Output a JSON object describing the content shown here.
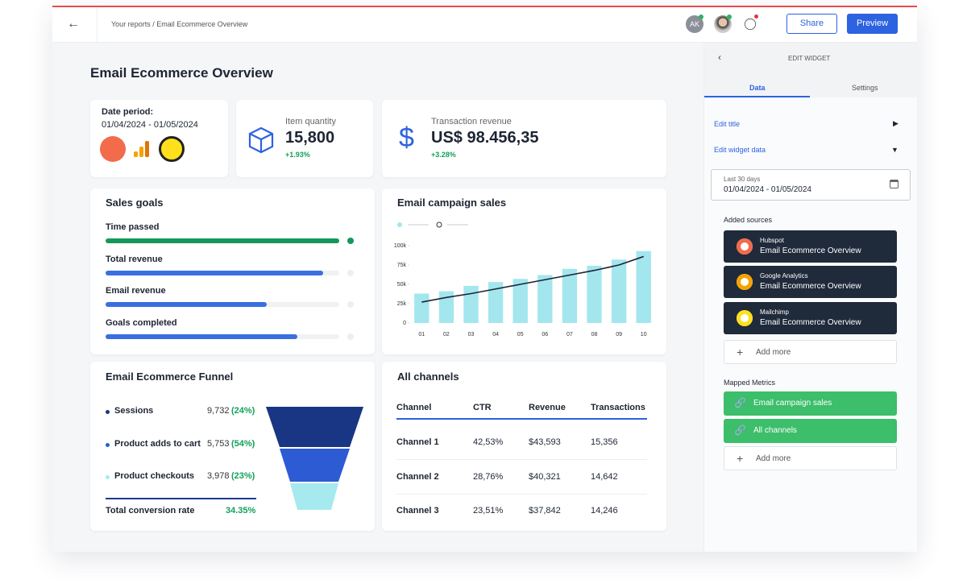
{
  "topbar": {
    "breadcrumb": "Your reports / Email Ecommerce Overview",
    "avatar": "AK",
    "share": "Share",
    "preview": "Preview"
  },
  "page_title": "Email Ecommerce Overview",
  "date_card": {
    "label": "Date period:",
    "value": "01/04/2024 - 01/05/2024"
  },
  "kpis": [
    {
      "label": "Item quantity",
      "value": "15,800",
      "change": "+1.93%"
    },
    {
      "label": "Transaction revenue",
      "value": "US$ 98.456,35",
      "change": "+3.28%"
    }
  ],
  "sales_goals": {
    "title": "Sales goals",
    "goals": [
      {
        "name": "Time passed",
        "progress": 100,
        "color": "#14985a"
      },
      {
        "name": "Total revenue",
        "progress": 93,
        "color": "#3a6fe0"
      },
      {
        "name": "Email revenue",
        "progress": 69,
        "color": "#3a6fe0"
      },
      {
        "name": "Goals completed",
        "progress": 82,
        "color": "#3a6fe0"
      }
    ]
  },
  "chart_data": {
    "type": "bar",
    "title": "Email campaign sales",
    "categories": [
      "01",
      "02",
      "03",
      "04",
      "05",
      "06",
      "07",
      "08",
      "09",
      "10"
    ],
    "series": [
      {
        "color": "#a3e6ee",
        "values": [
          38000,
          41000,
          48000,
          53000,
          57000,
          62000,
          70000,
          74000,
          82000,
          93000
        ]
      },
      {
        "type": "line",
        "color": "#1d2433",
        "values": [
          27000,
          33000,
          38000,
          44000,
          50000,
          56000,
          62000,
          68000,
          75000,
          86000
        ]
      }
    ],
    "ylim": [
      0,
      100000
    ],
    "yticks": [
      {
        "value": 0,
        "label": "0"
      },
      {
        "value": 25000,
        "label": "25k"
      },
      {
        "value": 50000,
        "label": "50k"
      },
      {
        "value": 75000,
        "label": "75k"
      },
      {
        "value": 100000,
        "label": "100k"
      }
    ]
  },
  "funnel": {
    "title": "Email Ecommerce Funnel",
    "stages": [
      {
        "name": "Sessions",
        "value": "9,732",
        "share": "(24%)"
      },
      {
        "name": "Product adds to cart",
        "value": "5,753",
        "share": "(54%)"
      },
      {
        "name": "Product checkouts",
        "value": "3,978",
        "share": "(23%)"
      }
    ],
    "total_label": "Total conversion rate",
    "total_value": "34.35%"
  },
  "table": {
    "title": "All channels",
    "header": [
      "Channel",
      "CTR",
      "Revenue",
      "Transactions"
    ],
    "rows": [
      [
        "Channel 1",
        "42,53%",
        "$43,593",
        "15,356"
      ],
      [
        "Channel 2",
        "28,76%",
        "$40,321",
        "14,642"
      ],
      [
        "Channel 3",
        "23,51%",
        "$37,842",
        "14,246"
      ]
    ]
  },
  "panel": {
    "title": "EDIT WIDGET",
    "tabs": [
      "Data",
      "Settings"
    ],
    "edit_title": "Edit title",
    "edit_data": "Edit widget data",
    "range_label": "Last 30 days",
    "range_value": "01/04/2024 - 01/05/2024",
    "sources_title": "Added sources",
    "sources": [
      {
        "name": "Hubspot",
        "report": "Email Ecommerce Overview"
      },
      {
        "name": "Google Analytics",
        "report": "Email Ecommerce Overview"
      },
      {
        "name": "Mailchimp",
        "report": "Email Ecommerce Overview"
      }
    ],
    "add_more": "Add more",
    "metrics_title": "Mapped Metrics",
    "metrics": [
      "Email campaign sales",
      "All channels"
    ]
  }
}
